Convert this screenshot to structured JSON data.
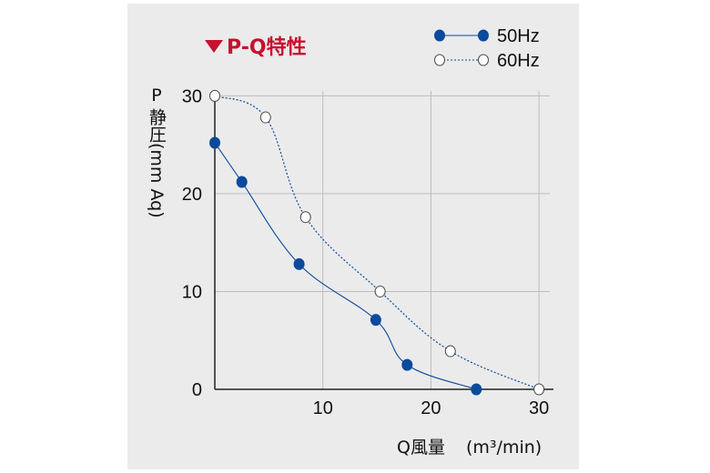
{
  "chart_data": {
    "type": "line",
    "title": "P-Q特性",
    "title_marker": "▼",
    "xlabel": "Q風量",
    "xlabel_unit": "(m³/min)",
    "ylabel_top": "P",
    "ylabel": "静圧(mm Aq)",
    "xlim": [
      0,
      31
    ],
    "ylim": [
      0,
      30.5
    ],
    "xticks": [
      10,
      20,
      30
    ],
    "yticks": [
      0,
      10,
      20,
      30
    ],
    "grid": true,
    "legend_position": "top-right",
    "series": [
      {
        "name": "50Hz",
        "marker": "filled",
        "line_style": "solid",
        "color": "#0a4a9c",
        "points": [
          {
            "x": 0,
            "y": 25.2
          },
          {
            "x": 2.5,
            "y": 21.2
          },
          {
            "x": 7.8,
            "y": 12.8
          },
          {
            "x": 14.9,
            "y": 7.1
          },
          {
            "x": 17.8,
            "y": 2.5
          },
          {
            "x": 24.2,
            "y": 0
          }
        ]
      },
      {
        "name": "60Hz",
        "marker": "hollow",
        "line_style": "dotted",
        "color": "#0a4a9c",
        "points": [
          {
            "x": 0,
            "y": 30
          },
          {
            "x": 4.7,
            "y": 27.8
          },
          {
            "x": 8.4,
            "y": 17.6
          },
          {
            "x": 15.3,
            "y": 10.0
          },
          {
            "x": 21.8,
            "y": 3.9
          },
          {
            "x": 30,
            "y": 0
          }
        ]
      }
    ]
  }
}
